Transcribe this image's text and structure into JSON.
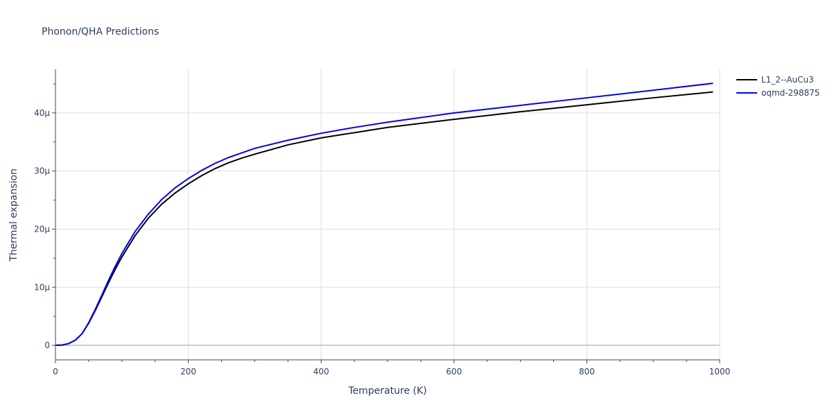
{
  "chart_data": {
    "type": "line",
    "title": "Phonon/QHA Predictions",
    "xlabel": "Temperature (K)",
    "ylabel": "Thermal expansion",
    "xlim": [
      0,
      1000
    ],
    "ylim": [
      -2.5e-06,
      4.75e-05
    ],
    "x_ticks": [
      0,
      200,
      400,
      600,
      800,
      1000
    ],
    "x_tick_labels": [
      "0",
      "200",
      "400",
      "600",
      "800",
      "1000"
    ],
    "y_ticks": [
      0,
      1e-05,
      2e-05,
      3e-05,
      4e-05
    ],
    "y_tick_labels": [
      "0",
      "10μ",
      "20μ",
      "30μ",
      "40μ"
    ],
    "grid": true,
    "legend_position": "top-right",
    "series": [
      {
        "name": "L1_2--AuCu3",
        "color": "#000000",
        "x": [
          0,
          10,
          20,
          30,
          40,
          50,
          60,
          70,
          80,
          90,
          100,
          120,
          140,
          160,
          180,
          200,
          220,
          240,
          260,
          280,
          300,
          350,
          400,
          450,
          500,
          600,
          700,
          800,
          900,
          990
        ],
        "y": [
          0,
          5e-08,
          3e-07,
          9e-07,
          2e-06,
          3.8e-06,
          6e-06,
          8.4e-06,
          1.08e-05,
          1.31e-05,
          1.52e-05,
          1.89e-05,
          2.19e-05,
          2.43e-05,
          2.62e-05,
          2.78e-05,
          2.92e-05,
          3.04e-05,
          3.14e-05,
          3.22e-05,
          3.29e-05,
          3.45e-05,
          3.57e-05,
          3.66e-05,
          3.75e-05,
          3.89e-05,
          4.02e-05,
          4.14e-05,
          4.26e-05,
          4.36e-05
        ]
      },
      {
        "name": "oqmd-298875",
        "color": "#0000ee",
        "x": [
          0,
          10,
          20,
          30,
          40,
          50,
          60,
          70,
          80,
          90,
          100,
          120,
          140,
          160,
          180,
          200,
          220,
          240,
          260,
          280,
          300,
          350,
          400,
          450,
          500,
          600,
          700,
          800,
          900,
          990
        ],
        "y": [
          0,
          5e-08,
          3e-07,
          9e-07,
          2e-06,
          3.9e-06,
          6.2e-06,
          8.7e-06,
          1.12e-05,
          1.36e-05,
          1.58e-05,
          1.96e-05,
          2.26e-05,
          2.51e-05,
          2.71e-05,
          2.87e-05,
          3.01e-05,
          3.13e-05,
          3.23e-05,
          3.31e-05,
          3.39e-05,
          3.53e-05,
          3.65e-05,
          3.75e-05,
          3.84e-05,
          4e-05,
          4.13e-05,
          4.26e-05,
          4.39e-05,
          4.51e-05
        ]
      }
    ]
  }
}
